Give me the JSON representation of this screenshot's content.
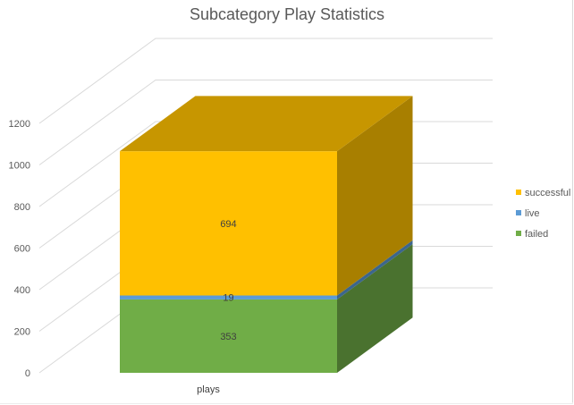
{
  "chart_data": {
    "type": "bar",
    "stacked": true,
    "three_d": true,
    "title": "Subcategory Play Statistics",
    "categories": [
      "plays"
    ],
    "series": [
      {
        "name": "failed",
        "values": [
          353
        ],
        "color": "#70ad47"
      },
      {
        "name": "live",
        "values": [
          19
        ],
        "color": "#5b9bd5"
      },
      {
        "name": "successful",
        "values": [
          694
        ],
        "color": "#ffc000"
      }
    ],
    "data_labels": [
      "353",
      "19",
      "694"
    ],
    "ylim": [
      0,
      1200
    ],
    "yticks": [
      "0",
      "200",
      "400",
      "600",
      "800",
      "1000",
      "1200"
    ],
    "grid": true,
    "legend_position": "right",
    "xlabel": "",
    "ylabel": ""
  }
}
